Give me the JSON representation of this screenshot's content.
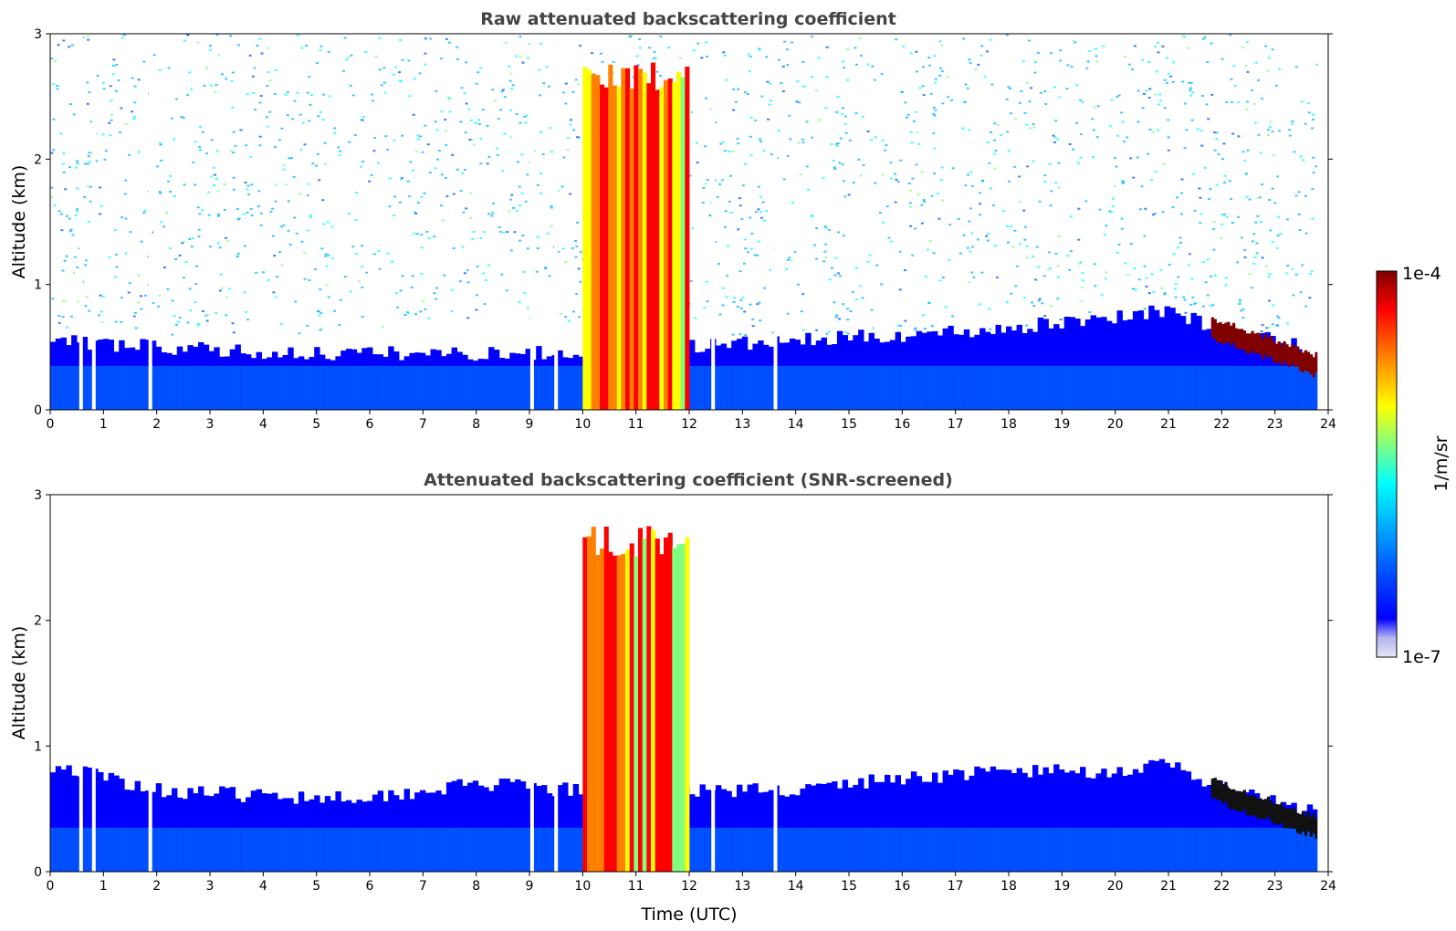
{
  "chart_data": [
    {
      "type": "heatmap",
      "title": "Raw attenuated backscattering coefficient",
      "xlabel": "",
      "ylabel": "Altitude (km)",
      "xlim": [
        0,
        24
      ],
      "ylim": [
        0,
        3
      ],
      "x_ticks": [
        "0",
        "1",
        "2",
        "3",
        "4",
        "5",
        "6",
        "7",
        "8",
        "9",
        "10",
        "11",
        "12",
        "13",
        "14",
        "15",
        "16",
        "17",
        "18",
        "19",
        "20",
        "21",
        "22",
        "23",
        "24"
      ],
      "y_ticks": [
        "0",
        "1",
        "2",
        "3"
      ],
      "screened": false,
      "features": {
        "boundary_layer": [
          [
            0,
            0.55
          ],
          [
            2,
            0.5
          ],
          [
            4,
            0.45
          ],
          [
            6,
            0.45
          ],
          [
            8,
            0.45
          ],
          [
            9.5,
            0.45
          ],
          [
            14,
            0.55
          ],
          [
            16,
            0.6
          ],
          [
            18,
            0.65
          ],
          [
            20,
            0.75
          ],
          [
            21,
            0.8
          ],
          [
            22,
            0.6
          ],
          [
            23,
            0.55
          ],
          [
            23.8,
            0.45
          ]
        ],
        "cloud_layer_10_12": {
          "t_start": 10.0,
          "t_end": 12.0,
          "top_km": 2.8
        },
        "elevated_aerosol_22_24": {
          "t_start": 21.8,
          "t_end": 23.8,
          "alt_start_km": 0.65,
          "alt_end_km": 0.35
        },
        "data_gaps_hours": [
          0.58,
          0.82,
          1.88,
          9.05,
          9.5,
          12.45,
          13.62
        ],
        "record_end_hour": 23.8
      }
    },
    {
      "type": "heatmap",
      "title": "Attenuated backscattering coefficient (SNR-screened)",
      "xlabel": "Time (UTC)",
      "ylabel": "Altitude (km)",
      "xlim": [
        0,
        24
      ],
      "ylim": [
        0,
        3
      ],
      "x_ticks": [
        "0",
        "1",
        "2",
        "3",
        "4",
        "5",
        "6",
        "7",
        "8",
        "9",
        "10",
        "11",
        "12",
        "13",
        "14",
        "15",
        "16",
        "17",
        "18",
        "19",
        "20",
        "21",
        "22",
        "23",
        "24"
      ],
      "y_ticks": [
        "0",
        "1",
        "2",
        "3"
      ],
      "screened": true,
      "features": {
        "boundary_layer": [
          [
            0,
            0.85
          ],
          [
            2,
            0.65
          ],
          [
            4,
            0.6
          ],
          [
            6,
            0.6
          ],
          [
            8,
            0.7
          ],
          [
            9.5,
            0.65
          ],
          [
            14,
            0.65
          ],
          [
            16,
            0.75
          ],
          [
            18,
            0.8
          ],
          [
            20,
            0.8
          ],
          [
            21,
            0.85
          ],
          [
            22,
            0.65
          ],
          [
            23,
            0.55
          ],
          [
            23.8,
            0.45
          ]
        ],
        "cloud_layer_10_12": {
          "t_start": 10.0,
          "t_end": 12.0,
          "top_km": 2.75
        },
        "elevated_aerosol_22_24": {
          "t_start": 21.8,
          "t_end": 23.8,
          "alt_start_km": 0.65,
          "alt_end_km": 0.35
        },
        "data_gaps_hours": [
          0.58,
          0.82,
          1.88,
          9.05,
          9.5,
          12.45,
          13.62
        ],
        "record_end_hour": 23.8
      }
    }
  ],
  "colorbar": {
    "min_label": "1e-7",
    "max_label": "1e-4",
    "label": "1/m/sr",
    "log_scale": true,
    "colormap": [
      "#e6e6f5",
      "#b4b4f0",
      "#0000ff",
      "#0050ff",
      "#00b4ff",
      "#00ffff",
      "#80ff80",
      "#ffff00",
      "#ff8000",
      "#ff0000",
      "#800000"
    ]
  }
}
